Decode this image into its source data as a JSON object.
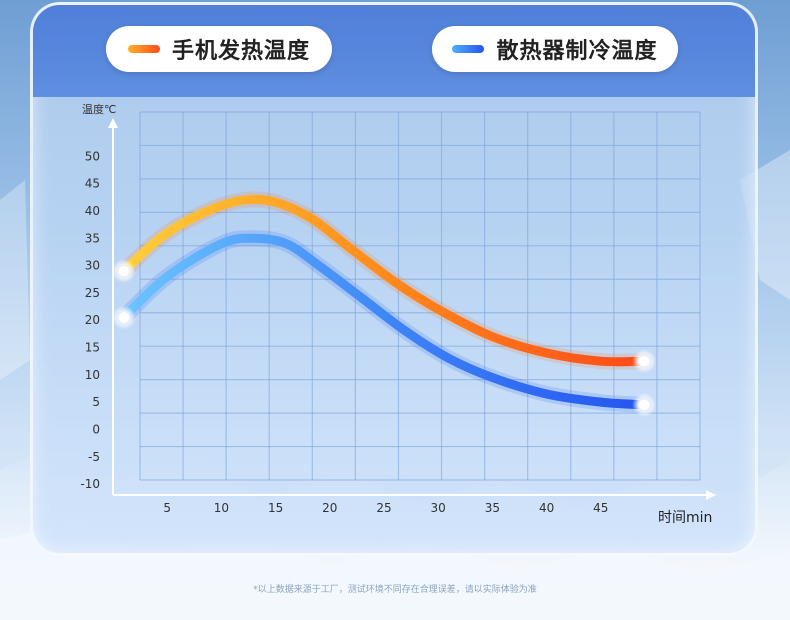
{
  "legend": {
    "items": [
      {
        "label": "手机发热温度",
        "color_start": "#ffb12a",
        "color_end": "#ff4a1a"
      },
      {
        "label": "散热器制冷温度",
        "color_start": "#4fb0ff",
        "color_end": "#2455f0"
      }
    ]
  },
  "footnote": "*以上数据来源于工厂，测试环境不同存在合理误差，请以实际体验为准",
  "chart_data": {
    "type": "line",
    "ylabel": "温度℃",
    "xlabel": "时间min",
    "x_ticks": [
      5,
      10,
      15,
      20,
      25,
      30,
      35,
      40,
      45
    ],
    "y_ticks": [
      50,
      45,
      40,
      35,
      30,
      25,
      20,
      15,
      10,
      5,
      0,
      -5,
      -10
    ],
    "xlim": [
      0,
      50
    ],
    "ylim": [
      -12,
      53
    ],
    "grid": true,
    "series": [
      {
        "name": "手机发热温度",
        "color": "#ff7a1a",
        "x": [
          1,
          5,
          10,
          14,
          18,
          22,
          26,
          30,
          35,
          40,
          45,
          49
        ],
        "y": [
          29,
          36,
          41,
          42,
          39,
          33,
          27,
          22,
          17,
          14,
          12.5,
          12.5
        ]
      },
      {
        "name": "散热器制冷温度",
        "color": "#2f6cf2",
        "x": [
          1,
          5,
          10,
          13,
          16,
          19,
          23,
          27,
          31,
          35,
          40,
          45,
          49
        ],
        "y": [
          20.5,
          28,
          34,
          35,
          34,
          30,
          24,
          18,
          13,
          9.5,
          6.5,
          5,
          4.5
        ]
      }
    ]
  }
}
